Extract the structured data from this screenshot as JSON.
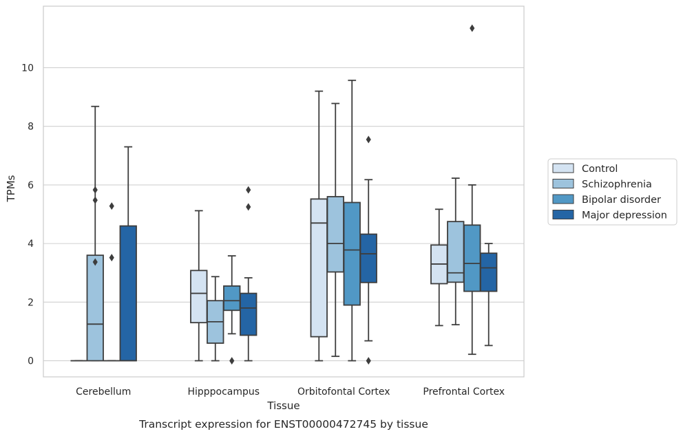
{
  "caption": "Transcript expression for ENST00000472745 by tissue",
  "chart_data": {
    "type": "box",
    "xlabel": "Tissue",
    "ylabel": "TPMs",
    "ylim": [
      -0.55,
      12.1
    ],
    "yticks": [
      0,
      2,
      4,
      6,
      8,
      10
    ],
    "grid": "horizontal",
    "legend_position": "right",
    "categories": [
      "Cerebellum",
      "Hipppocampus",
      "Orbitofontal Cortex",
      "Prefrontal Cortex"
    ],
    "series": [
      {
        "name": "Control",
        "color": "#d4e3f2",
        "boxes": [
          {
            "q1": 0,
            "median": 0,
            "q3": 0,
            "whisker_low": 0,
            "whisker_high": 0,
            "fliers": []
          },
          {
            "q1": 1.3,
            "median": 2.3,
            "q3": 3.08,
            "whisker_low": 0,
            "whisker_high": 5.12,
            "fliers": []
          },
          {
            "q1": 0.82,
            "median": 4.7,
            "q3": 5.52,
            "whisker_low": 0,
            "whisker_high": 9.2,
            "fliers": []
          },
          {
            "q1": 2.63,
            "median": 3.3,
            "q3": 3.95,
            "whisker_low": 1.2,
            "whisker_high": 5.17,
            "fliers": []
          }
        ]
      },
      {
        "name": "Schizophrenia",
        "color": "#9dc3dd",
        "boxes": [
          {
            "q1": 0,
            "median": 1.25,
            "q3": 3.6,
            "whisker_low": 0,
            "whisker_high": 8.68,
            "fliers": [
              3.37,
              5.48,
              5.83
            ]
          },
          {
            "q1": 0.6,
            "median": 1.33,
            "q3": 2.05,
            "whisker_low": 0,
            "whisker_high": 2.87,
            "fliers": []
          },
          {
            "q1": 3.03,
            "median": 4.0,
            "q3": 5.6,
            "whisker_low": 0.15,
            "whisker_high": 8.78,
            "fliers": []
          },
          {
            "q1": 2.68,
            "median": 3.0,
            "q3": 4.75,
            "whisker_low": 1.23,
            "whisker_high": 6.23,
            "fliers": []
          }
        ]
      },
      {
        "name": "Bipolar disorder",
        "color": "#5198c5",
        "boxes": [
          {
            "q1": 0,
            "median": 0,
            "q3": 0,
            "whisker_low": 0,
            "whisker_high": 0,
            "fliers": [
              3.52,
              5.28
            ]
          },
          {
            "q1": 1.72,
            "median": 2.05,
            "q3": 2.55,
            "whisker_low": 0.92,
            "whisker_high": 3.58,
            "fliers": [
              0
            ]
          },
          {
            "q1": 1.9,
            "median": 3.78,
            "q3": 5.4,
            "whisker_low": 0,
            "whisker_high": 9.57,
            "fliers": []
          },
          {
            "q1": 2.37,
            "median": 3.32,
            "q3": 4.63,
            "whisker_low": 0.22,
            "whisker_high": 6.0,
            "fliers": [
              11.35
            ]
          }
        ]
      },
      {
        "name": "Major depression",
        "color": "#2465a5",
        "boxes": [
          {
            "q1": 0,
            "median": 0,
            "q3": 4.6,
            "whisker_low": 0,
            "whisker_high": 7.3,
            "fliers": []
          },
          {
            "q1": 0.87,
            "median": 1.8,
            "q3": 2.3,
            "whisker_low": 0,
            "whisker_high": 2.83,
            "fliers": [
              5.25,
              5.83
            ]
          },
          {
            "q1": 2.67,
            "median": 3.65,
            "q3": 4.32,
            "whisker_low": 0.68,
            "whisker_high": 6.18,
            "fliers": [
              0,
              7.55
            ]
          },
          {
            "q1": 2.37,
            "median": 3.17,
            "q3": 3.67,
            "whisker_low": 0.52,
            "whisker_high": 4.0,
            "fliers": []
          }
        ]
      }
    ]
  }
}
